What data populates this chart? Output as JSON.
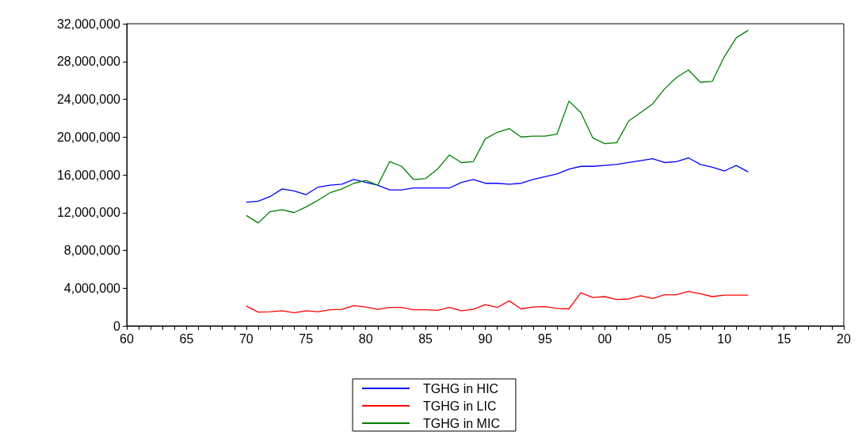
{
  "chart_data": {
    "type": "line",
    "x": [
      1970,
      1971,
      1972,
      1973,
      1974,
      1975,
      1976,
      1977,
      1978,
      1979,
      1980,
      1981,
      1982,
      1983,
      1984,
      1985,
      1986,
      1987,
      1988,
      1989,
      1990,
      1991,
      1992,
      1993,
      1994,
      1995,
      1996,
      1997,
      1998,
      1999,
      2000,
      2001,
      2002,
      2003,
      2004,
      2005,
      2006,
      2007,
      2008,
      2009,
      2010,
      2011,
      2012
    ],
    "series": [
      {
        "name": "TGHG in HIC",
        "color": "#0000ff",
        "values": [
          13100000,
          13200000,
          13700000,
          14500000,
          14300000,
          13900000,
          14700000,
          14900000,
          15000000,
          15500000,
          15200000,
          14900000,
          14400000,
          14400000,
          14600000,
          14600000,
          14600000,
          14600000,
          15200000,
          15500000,
          15100000,
          15100000,
          15000000,
          15100000,
          15500000,
          15800000,
          16100000,
          16600000,
          16900000,
          16900000,
          17000000,
          17100000,
          17300000,
          17500000,
          17700000,
          17300000,
          17400000,
          17800000,
          17100000,
          16800000,
          16400000,
          17000000,
          16300000
        ]
      },
      {
        "name": "TGHG in LIC",
        "color": "#ff0000",
        "values": [
          2100000,
          1450000,
          1500000,
          1600000,
          1400000,
          1600000,
          1500000,
          1700000,
          1750000,
          2150000,
          2000000,
          1750000,
          1950000,
          1950000,
          1700000,
          1700000,
          1650000,
          1950000,
          1600000,
          1750000,
          2250000,
          1950000,
          2650000,
          1800000,
          2000000,
          2050000,
          1850000,
          1800000,
          3500000,
          3000000,
          3100000,
          2800000,
          2850000,
          3200000,
          2900000,
          3300000,
          3300000,
          3650000,
          3400000,
          3100000,
          3250000,
          3250000,
          3250000
        ]
      },
      {
        "name": "TGHG in MIC",
        "color": "#008000",
        "values": [
          11700000,
          10900000,
          12100000,
          12300000,
          12000000,
          12600000,
          13300000,
          14100000,
          14500000,
          15100000,
          15400000,
          14900000,
          17400000,
          16900000,
          15500000,
          15600000,
          16600000,
          18100000,
          17300000,
          17400000,
          19800000,
          20500000,
          20900000,
          20000000,
          20100000,
          20100000,
          20300000,
          23800000,
          22600000,
          19900000,
          19300000,
          19400000,
          21700000,
          22600000,
          23500000,
          25100000,
          26300000,
          27100000,
          25800000,
          25900000,
          28500000,
          30500000,
          31300000
        ]
      }
    ],
    "xlim": [
      1960,
      2020
    ],
    "xticks": [
      {
        "value": 1960,
        "label": "60"
      },
      {
        "value": 1965,
        "label": "65"
      },
      {
        "value": 1970,
        "label": "70"
      },
      {
        "value": 1975,
        "label": "75"
      },
      {
        "value": 1980,
        "label": "80"
      },
      {
        "value": 1985,
        "label": "85"
      },
      {
        "value": 1990,
        "label": "90"
      },
      {
        "value": 1995,
        "label": "95"
      },
      {
        "value": 2000,
        "label": "00"
      },
      {
        "value": 2005,
        "label": "05"
      },
      {
        "value": 2010,
        "label": "10"
      },
      {
        "value": 2015,
        "label": "15"
      },
      {
        "value": 2020,
        "label": "20"
      }
    ],
    "ylim": [
      0,
      32000000
    ],
    "yticks": [
      {
        "value": 0,
        "label": "0"
      },
      {
        "value": 4000000,
        "label": "4,000,000"
      },
      {
        "value": 8000000,
        "label": "8,000,000"
      },
      {
        "value": 12000000,
        "label": "12,000,000"
      },
      {
        "value": 16000000,
        "label": "16,000,000"
      },
      {
        "value": 20000000,
        "label": "20,000,000"
      },
      {
        "value": 24000000,
        "label": "24,000,000"
      },
      {
        "value": 28000000,
        "label": "28,000,000"
      },
      {
        "value": 32000000,
        "label": "32,000,000"
      }
    ],
    "legend": "bottom",
    "grid": false,
    "marker": "none",
    "line_style": "solid"
  }
}
